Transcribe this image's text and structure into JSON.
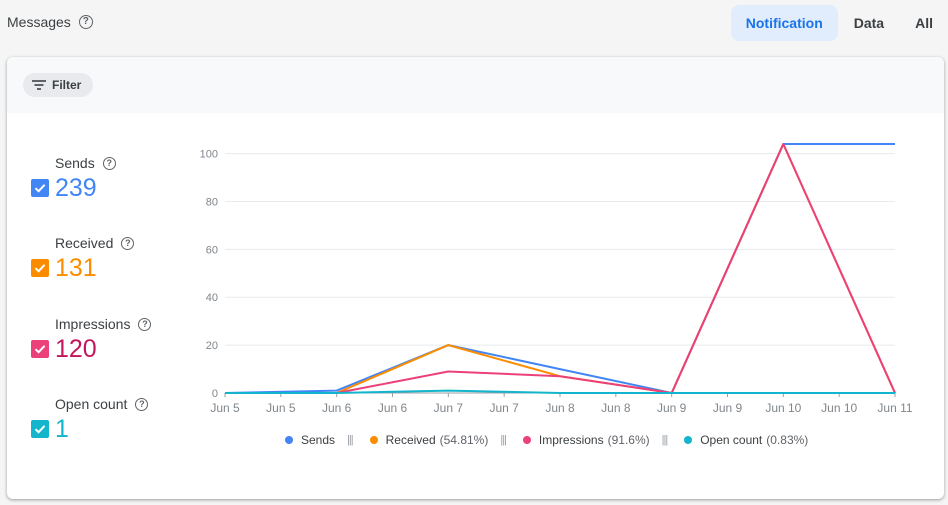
{
  "header": {
    "title": "Messages",
    "help_glyph": "?",
    "tabs": [
      {
        "label": "Notification",
        "active": true
      },
      {
        "label": "Data",
        "active": false
      },
      {
        "label": "All",
        "active": false
      }
    ]
  },
  "card": {
    "filter_label": "Filter"
  },
  "metrics": [
    {
      "label": "Sends",
      "value": "239",
      "color": "#4285f4",
      "value_color": "#4285f4"
    },
    {
      "label": "Received",
      "value": "131",
      "color": "#fb8c00",
      "value_color": "#fb8c00"
    },
    {
      "label": "Impressions",
      "value": "120",
      "color": "#ec407a",
      "value_color": "#c2185b"
    },
    {
      "label": "Open count",
      "value": "1",
      "color": "#12b5cb",
      "value_color": "#12b5cb"
    }
  ],
  "legend": [
    {
      "name": "Sends",
      "pct": "",
      "color": "#4285f4"
    },
    {
      "name": "Received",
      "pct": "(54.81%)",
      "color": "#fb8c00"
    },
    {
      "name": "Impressions",
      "pct": "(91.6%)",
      "color": "#ec407a"
    },
    {
      "name": "Open count",
      "pct": "(0.83%)",
      "color": "#12b5cb"
    }
  ],
  "legend_separator": "|||",
  "chart_data": {
    "type": "line",
    "x": [
      0,
      1,
      2,
      3,
      4,
      5,
      6
    ],
    "x_tick_labels": [
      "Jun 5",
      "Jun 5",
      "Jun 6",
      "Jun 6",
      "Jun 7",
      "Jun 7",
      "Jun 8",
      "Jun 8",
      "Jun 9",
      "Jun 9",
      "Jun 10",
      "Jun 10",
      "Jun 11"
    ],
    "y_ticks": [
      0,
      20,
      40,
      60,
      80,
      100
    ],
    "ylim": [
      0,
      104
    ],
    "grid": true,
    "legend_position": "bottom",
    "series": [
      {
        "name": "Sends",
        "color": "#4285f4",
        "points": [
          [
            0,
            0
          ],
          [
            1,
            1
          ],
          [
            2,
            20
          ],
          [
            3,
            10
          ],
          [
            4,
            0
          ],
          [
            5,
            104
          ],
          [
            6,
            104
          ]
        ]
      },
      {
        "name": "Received",
        "color": "#fb8c00",
        "points": [
          [
            0,
            0
          ],
          [
            1,
            0
          ],
          [
            2,
            20
          ],
          [
            3,
            7
          ],
          [
            4,
            0
          ],
          [
            5,
            104
          ],
          [
            6,
            0
          ]
        ]
      },
      {
        "name": "Impressions",
        "color": "#ec407a",
        "points": [
          [
            0,
            0
          ],
          [
            1,
            0
          ],
          [
            2,
            9
          ],
          [
            3,
            7
          ],
          [
            4,
            0
          ],
          [
            5,
            104
          ],
          [
            6,
            0
          ]
        ]
      },
      {
        "name": "Open count",
        "color": "#12b5cb",
        "points": [
          [
            0,
            0
          ],
          [
            1,
            0
          ],
          [
            2,
            1
          ],
          [
            3,
            0
          ],
          [
            4,
            0
          ],
          [
            5,
            0
          ],
          [
            6,
            0
          ]
        ]
      }
    ]
  }
}
